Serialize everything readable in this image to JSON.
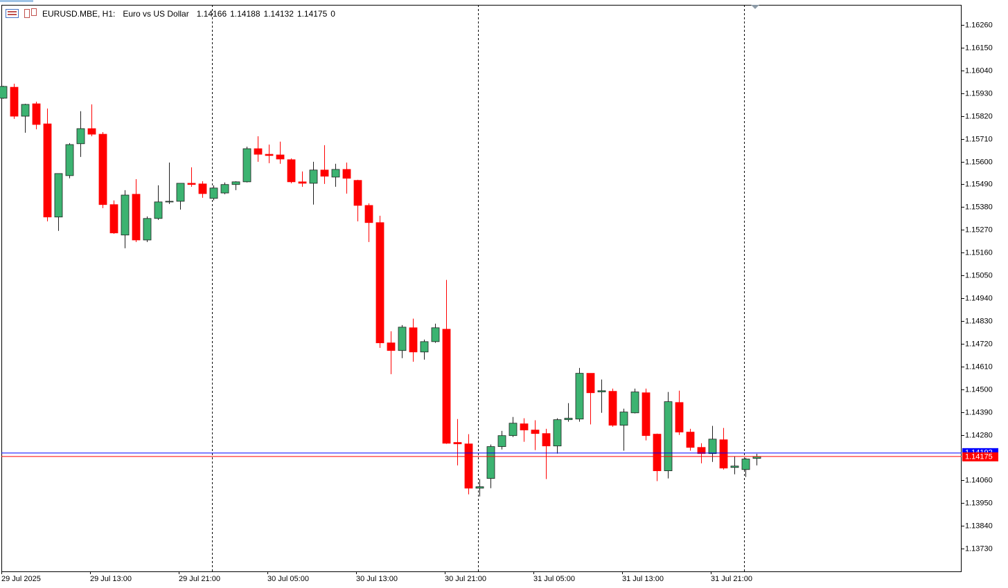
{
  "chart_data": {
    "type": "candlestick",
    "symbol": "EURUSD.MBE, H1:",
    "description": "Euro vs US Dollar",
    "volume": 0,
    "categories": [
      "29 Jul 2025",
      null,
      null,
      null,
      null,
      null,
      null,
      null,
      "29 Jul 13:00",
      null,
      null,
      null,
      null,
      null,
      null,
      null,
      "29 Jul 21:00",
      null,
      null,
      null,
      null,
      null,
      null,
      null,
      "30 Jul 05:00",
      null,
      null,
      null,
      null,
      null,
      null,
      null,
      "30 Jul 13:00",
      null,
      null,
      null,
      null,
      null,
      null,
      null,
      "30 Jul 21:00",
      null,
      null,
      null,
      null,
      null,
      null,
      null,
      "31 Jul 05:00",
      null,
      null,
      null,
      null,
      null,
      null,
      null,
      "31 Jul 13:00",
      null,
      null,
      null,
      null,
      null,
      null,
      null,
      "31 Jul 21:00",
      null,
      null,
      null,
      null
    ],
    "open": [
      1.15906,
      1.15959,
      1.15819,
      1.15879,
      1.15782,
      1.15332,
      1.15532,
      1.15686,
      1.15759,
      1.15732,
      1.15392,
      1.15245,
      1.15442,
      1.15221,
      1.15325,
      1.15405,
      1.15408,
      1.15495,
      1.15492,
      1.15422,
      1.15448,
      1.15489,
      1.15502,
      1.15662,
      1.15635,
      1.15632,
      1.15609,
      1.15502,
      1.15495,
      1.15559,
      1.15525,
      1.15562,
      1.15509,
      1.15388,
      1.15305,
      1.14724,
      1.14687,
      1.14797,
      1.1468,
      1.1473,
      1.1479,
      1.14243,
      1.14236,
      1.14022,
      1.14069,
      1.14223,
      1.14276,
      1.14333,
      1.14303,
      1.14286,
      1.14226,
      1.14353,
      1.14356,
      1.14577,
      1.14487,
      1.1449,
      1.14326,
      1.14386,
      1.14483,
      1.14283,
      1.14106,
      1.14436,
      1.14293,
      1.14219,
      1.14189,
      1.14256,
      1.14122,
      1.14112,
      1.14166
    ],
    "high": [
      1.15966,
      1.15976,
      1.15879,
      1.15889,
      1.15856,
      1.15542,
      1.15689,
      1.15843,
      1.15876,
      1.15742,
      1.15412,
      1.15462,
      1.15515,
      1.15335,
      1.15485,
      1.15595,
      1.15495,
      1.15572,
      1.15505,
      1.15485,
      1.15499,
      1.15505,
      1.15672,
      1.15722,
      1.15682,
      1.15696,
      1.15615,
      1.15552,
      1.15599,
      1.15679,
      1.15589,
      1.15595,
      1.15512,
      1.15398,
      1.15338,
      1.1478,
      1.1481,
      1.14841,
      1.1474,
      1.14817,
      1.15028,
      1.14356,
      1.14283,
      1.14066,
      1.14233,
      1.14299,
      1.14366,
      1.1436,
      1.1435,
      1.14309,
      1.1436,
      1.14433,
      1.14603,
      1.14577,
      1.14547,
      1.14503,
      1.14406,
      1.14503,
      1.14503,
      1.14286,
      1.14487,
      1.14493,
      1.14309,
      1.14239,
      1.14323,
      1.14313,
      1.14176,
      1.14169,
      1.14188
    ],
    "low": [
      1.15903,
      1.15806,
      1.15739,
      1.15756,
      1.15311,
      1.15265,
      1.15519,
      1.15622,
      1.15722,
      1.15375,
      1.15251,
      1.15181,
      1.15211,
      1.15211,
      1.15318,
      1.15395,
      1.15368,
      1.15478,
      1.15425,
      1.15412,
      1.15442,
      1.15462,
      1.15499,
      1.15599,
      1.15592,
      1.15589,
      1.15495,
      1.15478,
      1.15392,
      1.15492,
      1.15478,
      1.15445,
      1.15311,
      1.15211,
      1.147,
      1.14573,
      1.1465,
      1.14633,
      1.14643,
      1.14724,
      1.14236,
      1.14132,
      1.13992,
      1.13982,
      1.14022,
      1.14209,
      1.14269,
      1.14246,
      1.14206,
      1.14066,
      1.14189,
      1.14343,
      1.14343,
      1.1433,
      1.14386,
      1.14319,
      1.14203,
      1.14383,
      1.14253,
      1.14056,
      1.14069,
      1.14279,
      1.14203,
      1.14142,
      1.14149,
      1.14112,
      1.14089,
      1.14076,
      1.14132
    ],
    "close": [
      1.15963,
      1.15819,
      1.15876,
      1.15779,
      1.15332,
      1.15542,
      1.15682,
      1.15759,
      1.15732,
      1.15392,
      1.15255,
      1.15438,
      1.15221,
      1.15325,
      1.15405,
      1.15408,
      1.15495,
      1.15489,
      1.15445,
      1.15472,
      1.15489,
      1.15502,
      1.15662,
      1.15635,
      1.15629,
      1.15612,
      1.15502,
      1.15495,
      1.15559,
      1.15529,
      1.15562,
      1.15519,
      1.15388,
      1.15305,
      1.14724,
      1.14687,
      1.148,
      1.1468,
      1.1473,
      1.14797,
      1.14239,
      1.14236,
      1.14022,
      1.14029,
      1.14223,
      1.14276,
      1.14336,
      1.14303,
      1.14286,
      1.14226,
      1.14353,
      1.1436,
      1.14577,
      1.14483,
      1.14493,
      1.14326,
      1.1439,
      1.14487,
      1.14276,
      1.14106,
      1.1444,
      1.14293,
      1.14219,
      1.14189,
      1.14259,
      1.14119,
      1.14129,
      1.14163,
      1.14175
    ],
    "up_color": "#3cb371",
    "down_color": "#ff0000",
    "ask": 1.14192,
    "ask_color": "#0000ff",
    "bid_color": "#ff0000",
    "ylim": [
      1.1362,
      1.16357
    ],
    "yticks": [
      {
        "value": 1.1626,
        "label": "1.16260"
      },
      {
        "value": 1.1615,
        "label": "1.16150"
      },
      {
        "value": 1.1604,
        "label": "1.16040"
      },
      {
        "value": 1.1593,
        "label": "1.15930"
      },
      {
        "value": 1.1582,
        "label": "1.15820"
      },
      {
        "value": 1.1571,
        "label": "1.15710"
      },
      {
        "value": 1.156,
        "label": "1.15600"
      },
      {
        "value": 1.1549,
        "label": "1.15490"
      },
      {
        "value": 1.1538,
        "label": "1.15380"
      },
      {
        "value": 1.1527,
        "label": "1.15270"
      },
      {
        "value": 1.1516,
        "label": "1.15160"
      },
      {
        "value": 1.1505,
        "label": "1.15050"
      },
      {
        "value": 1.1494,
        "label": "1.14940"
      },
      {
        "value": 1.1483,
        "label": "1.14830"
      },
      {
        "value": 1.1472,
        "label": "1.14720"
      },
      {
        "value": 1.1461,
        "label": "1.14610"
      },
      {
        "value": 1.145,
        "label": "1.14500"
      },
      {
        "value": 1.1439,
        "label": "1.14390"
      },
      {
        "value": 1.1428,
        "label": "1.14280"
      },
      {
        "value": 1.1406,
        "label": "1.14060"
      },
      {
        "value": 1.1395,
        "label": "1.13950"
      },
      {
        "value": 1.1384,
        "label": "1.13840"
      },
      {
        "value": 1.1373,
        "label": "1.13730"
      }
    ]
  }
}
